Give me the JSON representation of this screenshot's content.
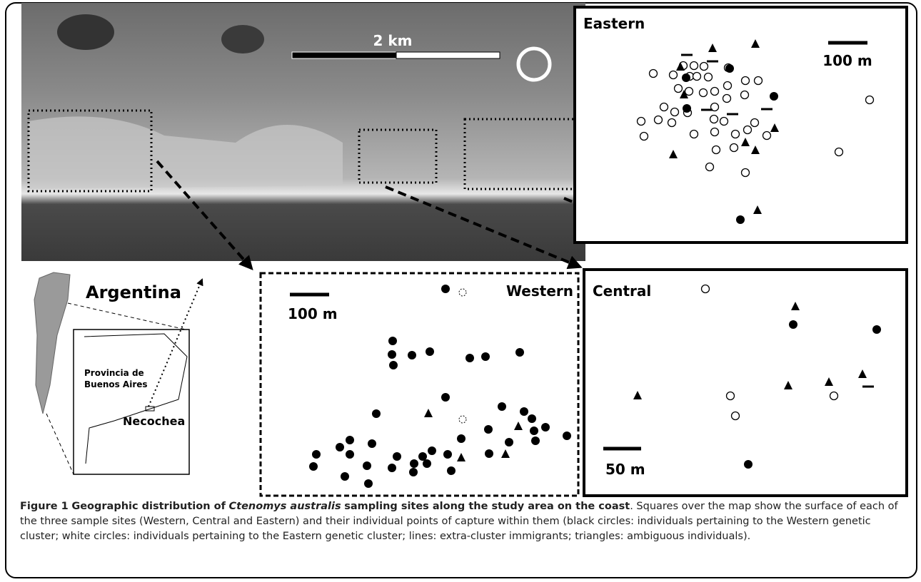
{
  "map": {
    "scale": "2 km"
  },
  "panels": {
    "eastern": {
      "title": "Eastern",
      "scale": "100 m"
    },
    "western": {
      "title": "Western",
      "scale": "100 m"
    },
    "central": {
      "title": "Central",
      "scale": "50 m"
    }
  },
  "inset": {
    "country": "Argentina",
    "province": [
      "Provincia de",
      "Buenos Aires"
    ],
    "city": "Necochea"
  },
  "caption": {
    "label": "Figure 1",
    "title_start": "Geographic distribution of",
    "species": "Ctenomys australis",
    "title_end": "sampling sites along the study area on the coast",
    "text": ". Squares over the map show the surface of each of the three sample sites (Western, Central and Eastern) and their individual points of capture within them (black circles: individuals pertaining to the Western genetic cluster; white circles: individuals pertaining to the Eastern genetic cluster; lines: extra-cluster immigrants; triangles: ambiguous individuals)."
  }
}
